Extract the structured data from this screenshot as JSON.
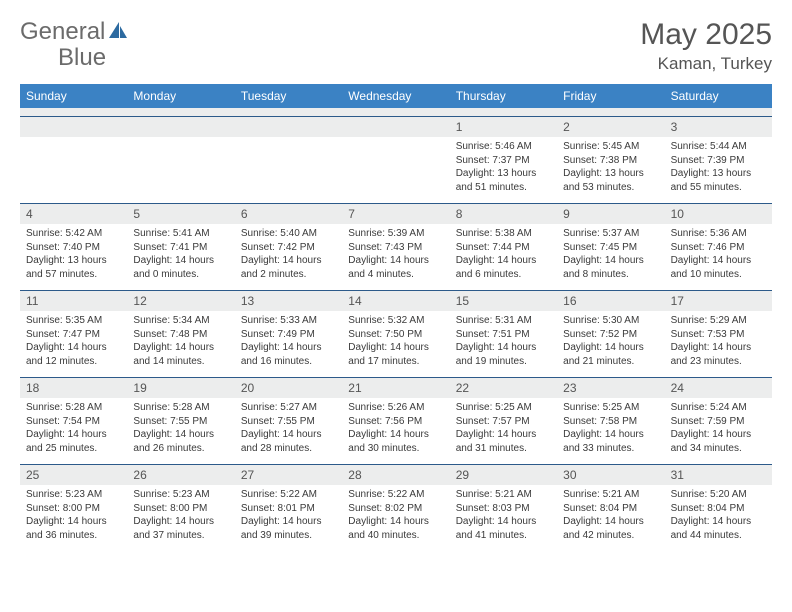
{
  "brand": {
    "name_a": "General",
    "name_b": "Blue"
  },
  "title": "May 2025",
  "location": "Kaman, Turkey",
  "colors": {
    "header_bg": "#3b82c4",
    "header_text": "#ffffff",
    "row_divider": "#2c5a8a",
    "shaded_bg": "#eceded",
    "body_text": "#3a3a3a",
    "muted_text": "#555555",
    "brand_gray": "#6b6b6b",
    "brand_blue": "#2c6aa0"
  },
  "weekdays": [
    "Sunday",
    "Monday",
    "Tuesday",
    "Wednesday",
    "Thursday",
    "Friday",
    "Saturday"
  ],
  "weeks": [
    [
      {
        "n": "",
        "sr": "",
        "ss": "",
        "dl": ""
      },
      {
        "n": "",
        "sr": "",
        "ss": "",
        "dl": ""
      },
      {
        "n": "",
        "sr": "",
        "ss": "",
        "dl": ""
      },
      {
        "n": "",
        "sr": "",
        "ss": "",
        "dl": ""
      },
      {
        "n": "1",
        "sr": "Sunrise: 5:46 AM",
        "ss": "Sunset: 7:37 PM",
        "dl": "Daylight: 13 hours and 51 minutes."
      },
      {
        "n": "2",
        "sr": "Sunrise: 5:45 AM",
        "ss": "Sunset: 7:38 PM",
        "dl": "Daylight: 13 hours and 53 minutes."
      },
      {
        "n": "3",
        "sr": "Sunrise: 5:44 AM",
        "ss": "Sunset: 7:39 PM",
        "dl": "Daylight: 13 hours and 55 minutes."
      }
    ],
    [
      {
        "n": "4",
        "sr": "Sunrise: 5:42 AM",
        "ss": "Sunset: 7:40 PM",
        "dl": "Daylight: 13 hours and 57 minutes."
      },
      {
        "n": "5",
        "sr": "Sunrise: 5:41 AM",
        "ss": "Sunset: 7:41 PM",
        "dl": "Daylight: 14 hours and 0 minutes."
      },
      {
        "n": "6",
        "sr": "Sunrise: 5:40 AM",
        "ss": "Sunset: 7:42 PM",
        "dl": "Daylight: 14 hours and 2 minutes."
      },
      {
        "n": "7",
        "sr": "Sunrise: 5:39 AM",
        "ss": "Sunset: 7:43 PM",
        "dl": "Daylight: 14 hours and 4 minutes."
      },
      {
        "n": "8",
        "sr": "Sunrise: 5:38 AM",
        "ss": "Sunset: 7:44 PM",
        "dl": "Daylight: 14 hours and 6 minutes."
      },
      {
        "n": "9",
        "sr": "Sunrise: 5:37 AM",
        "ss": "Sunset: 7:45 PM",
        "dl": "Daylight: 14 hours and 8 minutes."
      },
      {
        "n": "10",
        "sr": "Sunrise: 5:36 AM",
        "ss": "Sunset: 7:46 PM",
        "dl": "Daylight: 14 hours and 10 minutes."
      }
    ],
    [
      {
        "n": "11",
        "sr": "Sunrise: 5:35 AM",
        "ss": "Sunset: 7:47 PM",
        "dl": "Daylight: 14 hours and 12 minutes."
      },
      {
        "n": "12",
        "sr": "Sunrise: 5:34 AM",
        "ss": "Sunset: 7:48 PM",
        "dl": "Daylight: 14 hours and 14 minutes."
      },
      {
        "n": "13",
        "sr": "Sunrise: 5:33 AM",
        "ss": "Sunset: 7:49 PM",
        "dl": "Daylight: 14 hours and 16 minutes."
      },
      {
        "n": "14",
        "sr": "Sunrise: 5:32 AM",
        "ss": "Sunset: 7:50 PM",
        "dl": "Daylight: 14 hours and 17 minutes."
      },
      {
        "n": "15",
        "sr": "Sunrise: 5:31 AM",
        "ss": "Sunset: 7:51 PM",
        "dl": "Daylight: 14 hours and 19 minutes."
      },
      {
        "n": "16",
        "sr": "Sunrise: 5:30 AM",
        "ss": "Sunset: 7:52 PM",
        "dl": "Daylight: 14 hours and 21 minutes."
      },
      {
        "n": "17",
        "sr": "Sunrise: 5:29 AM",
        "ss": "Sunset: 7:53 PM",
        "dl": "Daylight: 14 hours and 23 minutes."
      }
    ],
    [
      {
        "n": "18",
        "sr": "Sunrise: 5:28 AM",
        "ss": "Sunset: 7:54 PM",
        "dl": "Daylight: 14 hours and 25 minutes."
      },
      {
        "n": "19",
        "sr": "Sunrise: 5:28 AM",
        "ss": "Sunset: 7:55 PM",
        "dl": "Daylight: 14 hours and 26 minutes."
      },
      {
        "n": "20",
        "sr": "Sunrise: 5:27 AM",
        "ss": "Sunset: 7:55 PM",
        "dl": "Daylight: 14 hours and 28 minutes."
      },
      {
        "n": "21",
        "sr": "Sunrise: 5:26 AM",
        "ss": "Sunset: 7:56 PM",
        "dl": "Daylight: 14 hours and 30 minutes."
      },
      {
        "n": "22",
        "sr": "Sunrise: 5:25 AM",
        "ss": "Sunset: 7:57 PM",
        "dl": "Daylight: 14 hours and 31 minutes."
      },
      {
        "n": "23",
        "sr": "Sunrise: 5:25 AM",
        "ss": "Sunset: 7:58 PM",
        "dl": "Daylight: 14 hours and 33 minutes."
      },
      {
        "n": "24",
        "sr": "Sunrise: 5:24 AM",
        "ss": "Sunset: 7:59 PM",
        "dl": "Daylight: 14 hours and 34 minutes."
      }
    ],
    [
      {
        "n": "25",
        "sr": "Sunrise: 5:23 AM",
        "ss": "Sunset: 8:00 PM",
        "dl": "Daylight: 14 hours and 36 minutes."
      },
      {
        "n": "26",
        "sr": "Sunrise: 5:23 AM",
        "ss": "Sunset: 8:00 PM",
        "dl": "Daylight: 14 hours and 37 minutes."
      },
      {
        "n": "27",
        "sr": "Sunrise: 5:22 AM",
        "ss": "Sunset: 8:01 PM",
        "dl": "Daylight: 14 hours and 39 minutes."
      },
      {
        "n": "28",
        "sr": "Sunrise: 5:22 AM",
        "ss": "Sunset: 8:02 PM",
        "dl": "Daylight: 14 hours and 40 minutes."
      },
      {
        "n": "29",
        "sr": "Sunrise: 5:21 AM",
        "ss": "Sunset: 8:03 PM",
        "dl": "Daylight: 14 hours and 41 minutes."
      },
      {
        "n": "30",
        "sr": "Sunrise: 5:21 AM",
        "ss": "Sunset: 8:04 PM",
        "dl": "Daylight: 14 hours and 42 minutes."
      },
      {
        "n": "31",
        "sr": "Sunrise: 5:20 AM",
        "ss": "Sunset: 8:04 PM",
        "dl": "Daylight: 14 hours and 44 minutes."
      }
    ]
  ]
}
